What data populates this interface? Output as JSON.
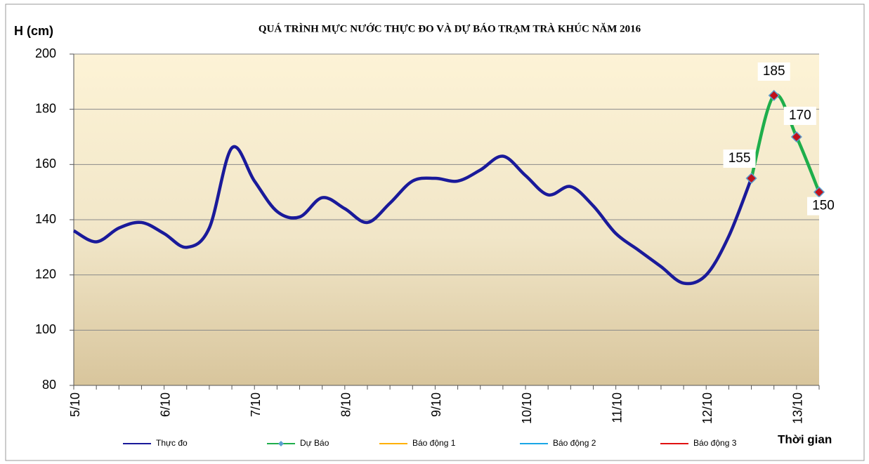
{
  "chart_data": {
    "type": "line",
    "title": "QUÁ TRÌNH MỰC NƯỚC THỰC ĐO VÀ DỰ BÁO TRẠM TRÀ KHÚC NĂM 2016",
    "y_label": "H (cm)",
    "x_label": "Thời gian",
    "categories": [
      "5/10",
      null,
      null,
      null,
      "6/10",
      null,
      null,
      null,
      "7/10",
      null,
      null,
      null,
      "8/10",
      null,
      null,
      null,
      "9/10",
      null,
      null,
      null,
      "10/10",
      null,
      null,
      null,
      "11/10",
      null,
      null,
      null,
      "12/10",
      null,
      null,
      null,
      "13/10",
      null
    ],
    "series": [
      {
        "name": "Thực đo",
        "color": "#1a1a9a",
        "values": [
          136,
          132,
          137,
          139,
          135,
          130,
          137,
          166,
          154,
          143,
          141,
          148,
          144,
          139,
          146,
          154,
          155,
          154,
          158,
          163,
          156,
          149,
          152,
          145,
          135,
          129,
          123,
          117,
          120,
          134,
          155,
          null,
          null,
          null
        ]
      },
      {
        "name": "Dự Báo",
        "color": "#1fae4b",
        "marker_color": "#c0101a",
        "values": [
          null,
          null,
          null,
          null,
          null,
          null,
          null,
          null,
          null,
          null,
          null,
          null,
          null,
          null,
          null,
          null,
          null,
          null,
          null,
          null,
          null,
          null,
          null,
          null,
          null,
          null,
          null,
          null,
          null,
          null,
          155,
          185,
          170,
          150
        ]
      },
      {
        "name": "Báo động 1",
        "color": "#ffb000",
        "values": [
          null,
          null,
          null,
          null,
          null,
          null,
          null,
          null,
          null,
          null,
          null,
          null,
          null,
          null,
          null,
          null,
          null,
          null,
          null,
          null,
          null,
          null,
          null,
          null,
          null,
          null,
          null,
          null,
          null,
          null,
          null,
          null,
          null,
          null
        ]
      },
      {
        "name": "Báo động 2",
        "color": "#1aa6e6",
        "values": [
          null,
          null,
          null,
          null,
          null,
          null,
          null,
          null,
          null,
          null,
          null,
          null,
          null,
          null,
          null,
          null,
          null,
          null,
          null,
          null,
          null,
          null,
          null,
          null,
          null,
          null,
          null,
          null,
          null,
          null,
          null,
          null,
          null,
          null
        ]
      },
      {
        "name": "Báo động 3",
        "color": "#e01010",
        "values": [
          null,
          null,
          null,
          null,
          null,
          null,
          null,
          null,
          null,
          null,
          null,
          null,
          null,
          null,
          null,
          null,
          null,
          null,
          null,
          null,
          null,
          null,
          null,
          null,
          null,
          null,
          null,
          null,
          null,
          null,
          null,
          null,
          null,
          null
        ]
      }
    ],
    "ylim": [
      80,
      200
    ],
    "yticks": [
      80,
      100,
      120,
      140,
      160,
      180,
      200
    ],
    "grid": true
  }
}
